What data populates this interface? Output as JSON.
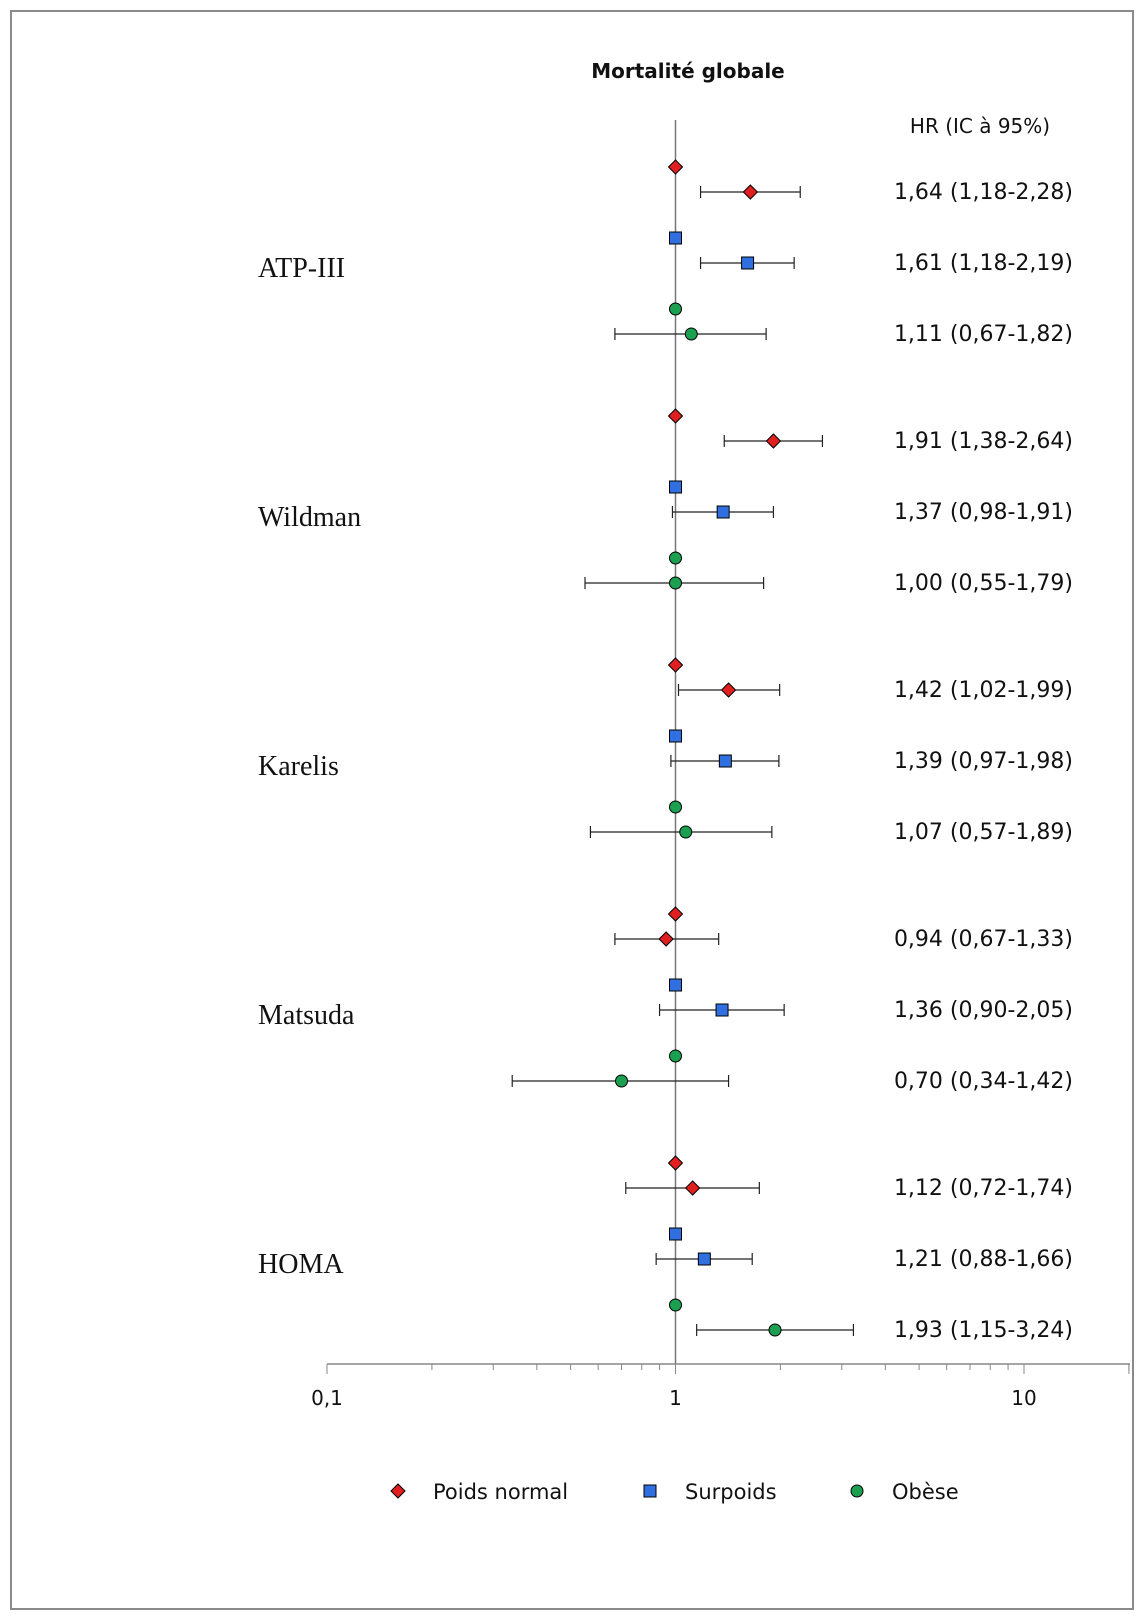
{
  "chart_data": {
    "type": "forest",
    "title": "Mortalité globale",
    "column_header": "HR (IC à 95%)",
    "x_scale": "log",
    "xlim": [
      0.1,
      20
    ],
    "x_ticks": [
      0.1,
      1,
      10
    ],
    "x_tick_labels": [
      "0,1",
      "1",
      "10"
    ],
    "reference_value": 1,
    "colors": {
      "Poids normal": "#e02020",
      "Surpoids": "#2f6fe0",
      "Obèse": "#1aa050"
    },
    "series_names": [
      "Poids normal",
      "Surpoids",
      "Obèse"
    ],
    "groups": [
      {
        "name": "ATP-III",
        "rows": [
          {
            "series": "Poids normal",
            "hr": 1.64,
            "lo": 1.18,
            "hi": 2.28,
            "label": "1,64 (1,18-2,28)"
          },
          {
            "series": "Surpoids",
            "hr": 1.61,
            "lo": 1.18,
            "hi": 2.19,
            "label": "1,61 (1,18-2,19)"
          },
          {
            "series": "Obèse",
            "hr": 1.11,
            "lo": 0.67,
            "hi": 1.82,
            "label": "1,11 (0,67-1,82)"
          }
        ]
      },
      {
        "name": "Wildman",
        "rows": [
          {
            "series": "Poids normal",
            "hr": 1.91,
            "lo": 1.38,
            "hi": 2.64,
            "label": "1,91 (1,38-2,64)"
          },
          {
            "series": "Surpoids",
            "hr": 1.37,
            "lo": 0.98,
            "hi": 1.91,
            "label": "1,37 (0,98-1,91)"
          },
          {
            "series": "Obèse",
            "hr": 1.0,
            "lo": 0.55,
            "hi": 1.79,
            "label": "1,00 (0,55-1,79)"
          }
        ]
      },
      {
        "name": "Karelis",
        "rows": [
          {
            "series": "Poids normal",
            "hr": 1.42,
            "lo": 1.02,
            "hi": 1.99,
            "label": "1,42 (1,02-1,99)"
          },
          {
            "series": "Surpoids",
            "hr": 1.39,
            "lo": 0.97,
            "hi": 1.98,
            "label": "1,39 (0,97-1,98)"
          },
          {
            "series": "Obèse",
            "hr": 1.07,
            "lo": 0.57,
            "hi": 1.89,
            "label": "1,07 (0,57-1,89)"
          }
        ]
      },
      {
        "name": "Matsuda",
        "rows": [
          {
            "series": "Poids normal",
            "hr": 0.94,
            "lo": 0.67,
            "hi": 1.33,
            "label": "0,94 (0,67-1,33)"
          },
          {
            "series": "Surpoids",
            "hr": 1.36,
            "lo": 0.9,
            "hi": 2.05,
            "label": "1,36 (0,90-2,05)"
          },
          {
            "series": "Obèse",
            "hr": 0.7,
            "lo": 0.34,
            "hi": 1.42,
            "label": "0,70 (0,34-1,42)"
          }
        ]
      },
      {
        "name": "HOMA",
        "rows": [
          {
            "series": "Poids normal",
            "hr": 1.12,
            "lo": 0.72,
            "hi": 1.74,
            "label": "1,12 (0,72-1,74)"
          },
          {
            "series": "Surpoids",
            "hr": 1.21,
            "lo": 0.88,
            "hi": 1.66,
            "label": "1,21 (0,88-1,66)"
          },
          {
            "series": "Obèse",
            "hr": 1.93,
            "lo": 1.15,
            "hi": 3.24,
            "label": "1,93 (1,15-3,24)"
          }
        ]
      }
    ],
    "legend": [
      {
        "label": "Poids normal",
        "marker": "diamond"
      },
      {
        "label": "Surpoids",
        "marker": "square"
      },
      {
        "label": "Obèse",
        "marker": "circle"
      }
    ],
    "legend_position": "bottom"
  }
}
